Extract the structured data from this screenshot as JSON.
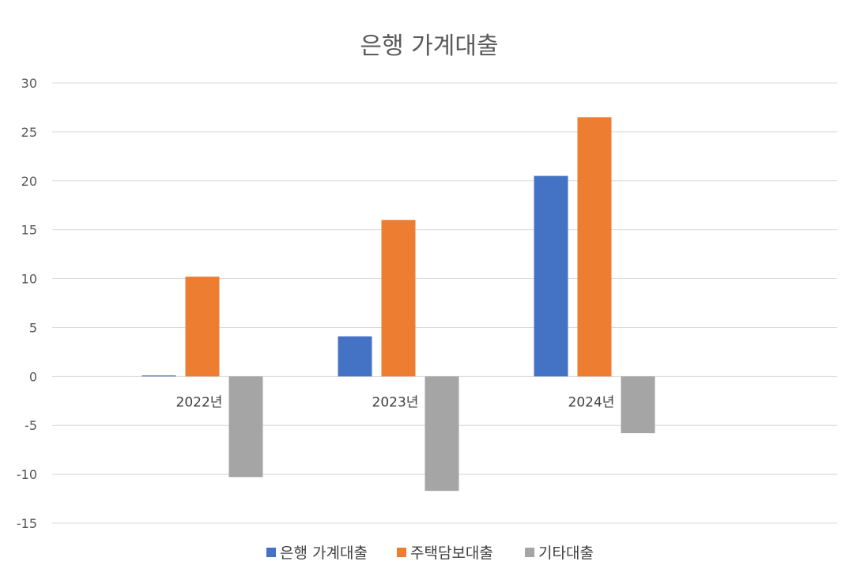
{
  "chart_data": {
    "type": "bar",
    "title": "은행 가계대출",
    "categories": [
      "2022년",
      "2023년",
      "2024년"
    ],
    "series": [
      {
        "name": "은행 가계대출",
        "color": "#4472C4",
        "values": [
          0.1,
          4.1,
          20.5
        ]
      },
      {
        "name": "주택담보대출",
        "color": "#ED7D31",
        "values": [
          10.2,
          16.0,
          26.5
        ]
      },
      {
        "name": "기타대출",
        "color": "#A5A5A5",
        "values": [
          -10.3,
          -11.7,
          -5.8
        ]
      }
    ],
    "xlabel": "",
    "ylabel": "",
    "ylim": [
      -15,
      30
    ],
    "yticks": [
      30,
      25,
      20,
      15,
      10,
      5,
      0,
      -5,
      -10,
      -15
    ],
    "grid": true,
    "legend": "bottom"
  }
}
